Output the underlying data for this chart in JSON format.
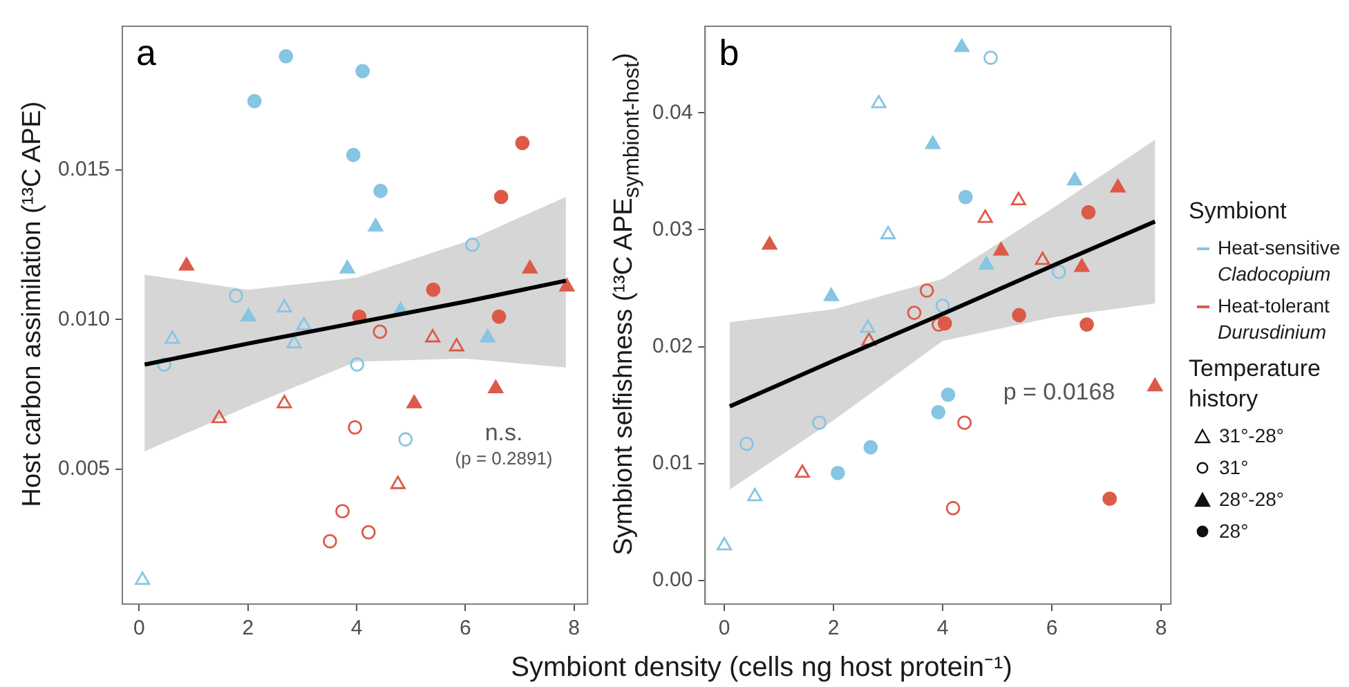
{
  "chart_data": [
    {
      "type": "scatter",
      "title": "a",
      "xlabel": "Symbiont density (cells ng host protein⁻¹)",
      "ylabel": "Host carbon assimilation (¹³C APE)",
      "xlim": [
        -0.31,
        8.25
      ],
      "ylim": [
        0.0005,
        0.0198
      ],
      "xticks": [
        0,
        2,
        4,
        6,
        8
      ],
      "yticks": [
        {
          "value": 0.005,
          "label": "0.005"
        },
        {
          "value": 0.01,
          "label": "0.010"
        },
        {
          "value": 0.015,
          "label": "0.015"
        }
      ],
      "annotations": [
        "n.s.",
        "(p = 0.2891)"
      ],
      "series": [
        {
          "color": "#86c5e3",
          "marker": "triangle-open",
          "x": [
            0.06,
            0.61,
            2.67,
            2.85,
            3.03
          ],
          "values": [
            0.0013,
            0.00935,
            0.0104,
            0.0092,
            0.0098
          ]
        },
        {
          "color": "#86c5e3",
          "marker": "circle-open",
          "x": [
            0.46,
            1.78,
            4.01,
            4.9,
            6.13
          ],
          "values": [
            0.0085,
            0.0108,
            0.0085,
            0.006,
            0.0125
          ]
        },
        {
          "color": "#86c5e3",
          "marker": "triangle",
          "x": [
            2.01,
            3.83,
            4.35,
            4.81,
            6.41
          ],
          "values": [
            0.0101,
            0.0117,
            0.0131,
            0.0103,
            0.0094
          ]
        },
        {
          "color": "#86c5e3",
          "marker": "circle",
          "x": [
            2.12,
            2.7,
            3.94,
            4.11,
            4.44
          ],
          "values": [
            0.0173,
            0.0188,
            0.0155,
            0.0183,
            0.0143
          ]
        },
        {
          "color": "#dc5a48",
          "marker": "triangle-open",
          "x": [
            1.47,
            2.67,
            4.76,
            5.4,
            5.84
          ],
          "values": [
            0.0067,
            0.0072,
            0.0045,
            0.0094,
            0.0091
          ]
        },
        {
          "color": "#dc5a48",
          "marker": "circle-open",
          "x": [
            3.51,
            3.74,
            3.97,
            4.22,
            4.43
          ],
          "values": [
            0.0026,
            0.0036,
            0.0064,
            0.0029,
            0.0096
          ]
        },
        {
          "color": "#dc5a48",
          "marker": "triangle",
          "x": [
            0.87,
            5.06,
            6.56,
            7.19,
            7.87
          ],
          "values": [
            0.0118,
            0.0072,
            0.0077,
            0.0117,
            0.0111
          ]
        },
        {
          "color": "#dc5a48",
          "marker": "circle",
          "x": [
            4.05,
            5.41,
            6.62,
            6.66,
            7.05
          ],
          "values": [
            0.0101,
            0.011,
            0.0101,
            0.0141,
            0.0159
          ]
        },
        {
          "type": "line",
          "color": "#000000",
          "x": [
            0.1,
            2,
            4,
            6,
            7.85
          ],
          "values": [
            0.0085,
            0.0092,
            0.0099,
            0.0106,
            0.0113
          ],
          "lower": [
            0.0056,
            0.0071,
            0.0086,
            0.0087,
            0.0084
          ],
          "upper": [
            0.0115,
            0.011,
            0.0114,
            0.0126,
            0.0141
          ]
        }
      ]
    },
    {
      "type": "scatter",
      "title": "b",
      "ylabel": "Symbiont selfishness (¹³C APE$_{symbiont-host}$)",
      "xlim": [
        -0.35,
        8.18
      ],
      "ylim": [
        -0.002,
        0.0474
      ],
      "xticks": [
        0,
        2,
        4,
        6,
        8
      ],
      "yticks": [
        {
          "value": 0,
          "label": "0.00"
        },
        {
          "value": 0.01,
          "label": "0.01"
        },
        {
          "value": 0.02,
          "label": "0.02"
        },
        {
          "value": 0.03,
          "label": "0.03"
        },
        {
          "value": 0.04,
          "label": "0.04"
        }
      ],
      "annotations": [
        "p = 0.0168"
      ],
      "series": [
        {
          "color": "#86c5e3",
          "marker": "triangle-open",
          "x": [
            0,
            0.56,
            2.63,
            2.83,
            3
          ],
          "values": [
            0.003,
            0.0072,
            0.0216,
            0.0408,
            0.0296
          ]
        },
        {
          "color": "#86c5e3",
          "marker": "circle-open",
          "x": [
            0.41,
            1.74,
            4,
            4.88,
            6.13
          ],
          "values": [
            0.0117,
            0.0135,
            0.0235,
            0.0447,
            0.0264
          ]
        },
        {
          "color": "#86c5e3",
          "marker": "triangle",
          "x": [
            1.96,
            3.82,
            4.35,
            4.8,
            6.42
          ],
          "values": [
            0.0243,
            0.0373,
            0.0456,
            0.027,
            0.0342
          ]
        },
        {
          "color": "#86c5e3",
          "marker": "circle",
          "x": [
            2.08,
            2.68,
            3.92,
            4.1,
            4.42
          ],
          "values": [
            0.0092,
            0.0114,
            0.0144,
            0.0159,
            0.0328
          ]
        },
        {
          "color": "#dc5a48",
          "marker": "triangle-open",
          "x": [
            1.43,
            2.65,
            4.78,
            5.39,
            5.83
          ],
          "values": [
            0.0092,
            0.0205,
            0.031,
            0.0325,
            0.0274
          ]
        },
        {
          "color": "#dc5a48",
          "marker": "circle-open",
          "x": [
            3.48,
            3.71,
            3.93,
            4.19,
            4.4
          ],
          "values": [
            0.0229,
            0.0248,
            0.0219,
            0.0062,
            0.0135
          ]
        },
        {
          "color": "#dc5a48",
          "marker": "triangle",
          "x": [
            0.83,
            5.07,
            6.55,
            7.21,
            7.89
          ],
          "values": [
            0.0287,
            0.0282,
            0.0268,
            0.0336,
            0.0166
          ]
        },
        {
          "color": "#dc5a48",
          "marker": "circle",
          "x": [
            4.04,
            5.4,
            6.64,
            6.67,
            7.06
          ],
          "values": [
            0.022,
            0.0227,
            0.0219,
            0.0315,
            0.007
          ]
        },
        {
          "type": "line",
          "color": "#000000",
          "x": [
            0.1,
            2,
            4,
            6,
            7.89
          ],
          "values": [
            0.0149,
            0.0188,
            0.0228,
            0.0269,
            0.0307
          ],
          "lower": [
            0.0078,
            0.0137,
            0.0205,
            0.0225,
            0.0237
          ],
          "upper": [
            0.0221,
            0.0232,
            0.0258,
            0.0318,
            0.0377
          ]
        }
      ]
    },
    {
      "type": "other",
      "annotations": [
        "Symbiont",
        "Heat-sensitive",
        "Cladocopium",
        "Heat-tolerant",
        "Durusdinium",
        "Temperature history",
        "31°-28°",
        "31°",
        "28°-28°",
        "28°"
      ]
    }
  ]
}
